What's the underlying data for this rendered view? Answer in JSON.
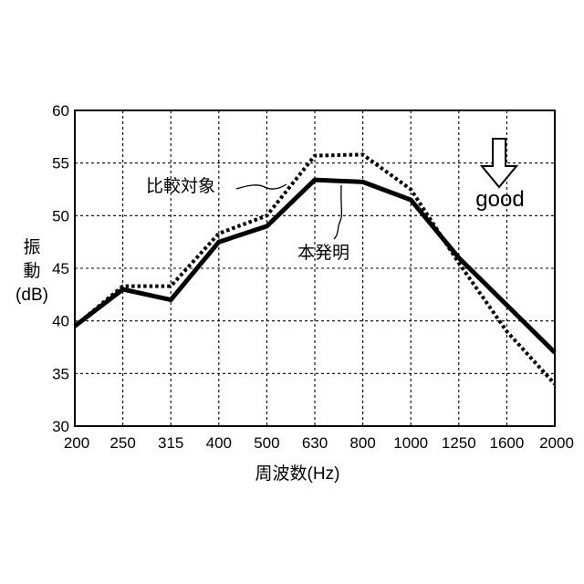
{
  "chart_data": {
    "type": "line",
    "title": "",
    "categories": [
      "200",
      "250",
      "315",
      "400",
      "500",
      "630",
      "800",
      "1000",
      "1250",
      "1600",
      "2000"
    ],
    "ylim": [
      30,
      60
    ],
    "yticks": [
      "30",
      "35",
      "40",
      "45",
      "50",
      "55",
      "60"
    ],
    "xlabel": "周波数(Hz)",
    "ylabel": {
      "line1": "振",
      "line2": "動",
      "line3": "(dB)"
    },
    "grid": true,
    "series": [
      {
        "name": "本発明",
        "style": "solid",
        "values": [
          39.5,
          43.0,
          42.0,
          47.5,
          49.0,
          53.4,
          53.2,
          51.5,
          46.0,
          41.5,
          37.0
        ]
      },
      {
        "name": "比較対象",
        "style": "dotted",
        "values": [
          39.5,
          43.3,
          43.3,
          48.3,
          50.0,
          55.7,
          55.8,
          52.5,
          45.5,
          39.0,
          34.0
        ]
      }
    ],
    "annotations": {
      "direction_label": "good",
      "direction_arrow": "down-arrow-icon"
    },
    "colors": {
      "line": "#000000",
      "grid": "#000000"
    }
  }
}
